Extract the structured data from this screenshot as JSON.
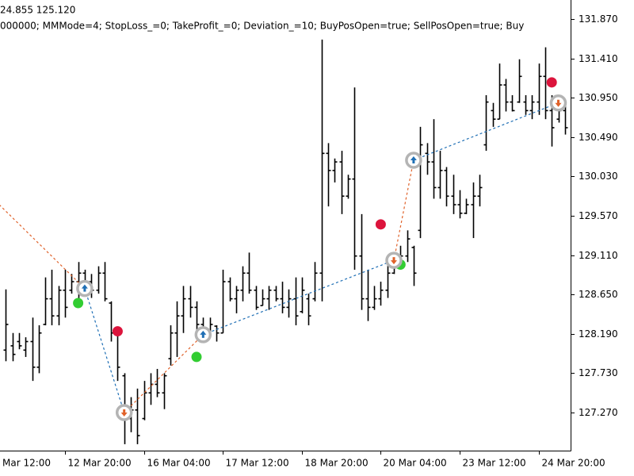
{
  "chart_data": {
    "type": "ohlc",
    "header_lines": [
      "24.855 125.120",
      "000000; MMMode=4; StopLoss_=0; TakeProfit_=0; Deviation_=10; BuyPosOpen=true; SellPosOpen=true; Buy"
    ],
    "left_edge_label": "Mar 12:00",
    "categories": [
      null,
      null,
      null,
      null,
      null,
      null,
      null,
      null,
      null,
      "12 Mar 20:00",
      null,
      null,
      null,
      null,
      null,
      null,
      null,
      null,
      null,
      null,
      null,
      "16 Mar 04:00",
      null,
      null,
      null,
      null,
      null,
      null,
      null,
      null,
      null,
      null,
      null,
      "17 Mar 12:00",
      null,
      null,
      null,
      null,
      null,
      null,
      null,
      null,
      null,
      null,
      null,
      "18 Mar 20:00",
      null,
      null,
      null,
      null,
      null,
      null,
      null,
      null,
      null,
      null,
      null,
      "20 Mar 04:00",
      null,
      null,
      null,
      null,
      null,
      null,
      null,
      null,
      null,
      null,
      null,
      "23 Mar 12:00",
      null,
      null,
      null,
      null,
      null,
      null,
      null,
      null,
      null,
      null,
      null,
      "24 Mar 20:00",
      null,
      null,
      null,
      null
    ],
    "open": [
      128.0,
      128.05,
      128.1,
      128.0,
      128.1,
      127.8,
      128.3,
      128.6,
      128.4,
      128.7,
      128.7,
      128.8,
      128.9,
      128.8,
      128.7,
      128.9,
      128.55,
      128.2,
      127.7,
      127.2,
      127.3,
      127.2,
      127.5,
      127.6,
      127.5,
      127.9,
      128.2,
      128.4,
      128.6,
      128.5,
      128.3,
      128.2,
      128.28,
      128.2,
      128.8,
      128.6,
      128.7,
      128.9,
      128.7,
      128.52,
      128.6,
      128.7,
      128.6,
      128.5,
      128.6,
      128.45,
      128.6,
      128.6,
      128.9,
      130.3,
      130.1,
      130.2,
      129.8,
      130.0,
      129.1,
      128.6,
      128.5,
      128.6,
      128.7,
      128.9,
      129.0,
      129.1,
      129.2,
      129.4,
      130.3,
      130.2,
      129.9,
      130.1,
      129.8,
      129.7,
      129.6,
      129.7,
      129.8,
      130.4,
      130.8,
      130.7,
      131.1,
      130.9,
      130.9,
      130.9,
      130.8,
      130.9,
      131.2,
      130.8,
      130.7,
      130.8
    ],
    "high": [
      128.71,
      128.2,
      128.2,
      128.15,
      128.38,
      128.29,
      128.85,
      128.94,
      128.75,
      128.94,
      128.89,
      129.03,
      128.94,
      128.89,
      128.98,
      129.03,
      128.57,
      128.2,
      127.73,
      127.45,
      127.55,
      127.64,
      127.73,
      127.78,
      127.73,
      128.29,
      128.57,
      128.75,
      128.75,
      128.57,
      128.38,
      128.38,
      128.29,
      128.94,
      128.85,
      128.75,
      128.98,
      129.14,
      128.75,
      128.71,
      128.75,
      128.75,
      128.8,
      128.71,
      128.85,
      128.85,
      128.66,
      129.03,
      131.63,
      130.42,
      130.24,
      130.33,
      130.05,
      131.07,
      129.59,
      128.94,
      128.75,
      128.8,
      129.03,
      129.03,
      129.22,
      129.4,
      129.22,
      130.61,
      130.42,
      130.7,
      130.33,
      130.14,
      130.05,
      129.87,
      129.77,
      129.96,
      130.05,
      130.98,
      130.89,
      131.35,
      131.17,
      130.98,
      131.4,
      130.98,
      130.98,
      131.35,
      131.54,
      130.98,
      130.89,
      130.89
    ],
    "low": [
      127.87,
      127.87,
      128.01,
      127.92,
      127.64,
      127.73,
      128.29,
      128.29,
      128.29,
      128.38,
      128.66,
      128.57,
      128.75,
      128.61,
      128.66,
      128.57,
      128.1,
      127.64,
      126.9,
      127.04,
      126.9,
      127.18,
      127.36,
      127.45,
      127.31,
      127.82,
      127.92,
      128.2,
      128.38,
      128.2,
      128.15,
      128.2,
      128.1,
      128.2,
      128.57,
      128.43,
      128.57,
      128.66,
      128.47,
      128.52,
      128.47,
      128.57,
      128.43,
      128.38,
      128.29,
      128.43,
      128.29,
      128.57,
      128.57,
      129.68,
      129.96,
      129.59,
      129.77,
      128.94,
      128.47,
      128.34,
      128.47,
      128.52,
      128.61,
      128.89,
      128.94,
      129.03,
      128.75,
      129.31,
      130.05,
      129.77,
      129.77,
      129.68,
      129.59,
      129.54,
      129.59,
      129.31,
      129.68,
      130.33,
      130.61,
      130.7,
      130.79,
      130.79,
      130.89,
      130.75,
      130.7,
      130.75,
      130.7,
      130.38,
      130.66,
      130.52
    ],
    "close": [
      128.3,
      127.95,
      128.05,
      128.1,
      127.8,
      128.2,
      128.6,
      128.4,
      128.7,
      128.5,
      128.8,
      128.9,
      128.8,
      128.7,
      128.9,
      128.6,
      128.2,
      127.8,
      127.2,
      127.3,
      127.0,
      127.5,
      127.6,
      127.5,
      127.7,
      128.2,
      128.4,
      128.6,
      128.5,
      128.3,
      128.2,
      128.3,
      128.2,
      128.8,
      128.6,
      128.7,
      128.9,
      128.7,
      128.5,
      128.6,
      128.7,
      128.6,
      128.5,
      128.6,
      128.4,
      128.7,
      128.4,
      128.9,
      130.3,
      130.1,
      130.2,
      129.8,
      130.0,
      129.1,
      128.6,
      128.5,
      128.6,
      128.7,
      128.9,
      129.0,
      129.1,
      129.3,
      128.9,
      130.4,
      130.2,
      129.9,
      130.1,
      129.8,
      129.7,
      129.6,
      129.7,
      129.8,
      129.9,
      130.9,
      130.7,
      131.1,
      130.9,
      130.8,
      131.2,
      130.8,
      130.9,
      131.2,
      130.8,
      130.6,
      130.8,
      130.6
    ],
    "color": "#000000",
    "ylim": [
      126.825,
      132.093
    ],
    "yticks": [
      {
        "value": 131.87,
        "label": "131.870"
      },
      {
        "value": 131.41,
        "label": "131.410"
      },
      {
        "value": 130.95,
        "label": "130.950"
      },
      {
        "value": 130.49,
        "label": "130.490"
      },
      {
        "value": 130.03,
        "label": "130.030"
      },
      {
        "value": 129.57,
        "label": "129.570"
      },
      {
        "value": 129.11,
        "label": "129.110"
      },
      {
        "value": 128.65,
        "label": "128.650"
      },
      {
        "value": 128.19,
        "label": "128.190"
      },
      {
        "value": 127.73,
        "label": "127.730"
      },
      {
        "value": 127.27,
        "label": "127.270"
      }
    ],
    "trades": [
      {
        "bar": -1,
        "price": 129.7,
        "side": "sell"
      },
      {
        "bar": 12,
        "price": 128.72,
        "side": "buy"
      },
      {
        "bar": 18,
        "price": 127.27,
        "side": "sell"
      },
      {
        "bar": 30,
        "price": 128.18,
        "side": "buy"
      },
      {
        "bar": 59,
        "price": 129.05,
        "side": "sell"
      },
      {
        "bar": 62,
        "price": 130.22,
        "side": "buy"
      },
      {
        "bar": 84,
        "price": 130.89,
        "side": "sell"
      }
    ],
    "trade_colors": {
      "buy": "#1f6fb5",
      "sell": "#e0622a"
    },
    "signals": [
      {
        "bar": 11,
        "price": 128.55,
        "color": "#32cd32"
      },
      {
        "bar": 17,
        "price": 128.22,
        "color": "#dc143c"
      },
      {
        "bar": 29,
        "price": 127.92,
        "color": "#32cd32"
      },
      {
        "bar": 57,
        "price": 129.47,
        "color": "#dc143c"
      },
      {
        "bar": 60,
        "price": 129.0,
        "color": "#32cd32"
      },
      {
        "bar": 83,
        "price": 131.13,
        "color": "#dc143c"
      }
    ]
  }
}
